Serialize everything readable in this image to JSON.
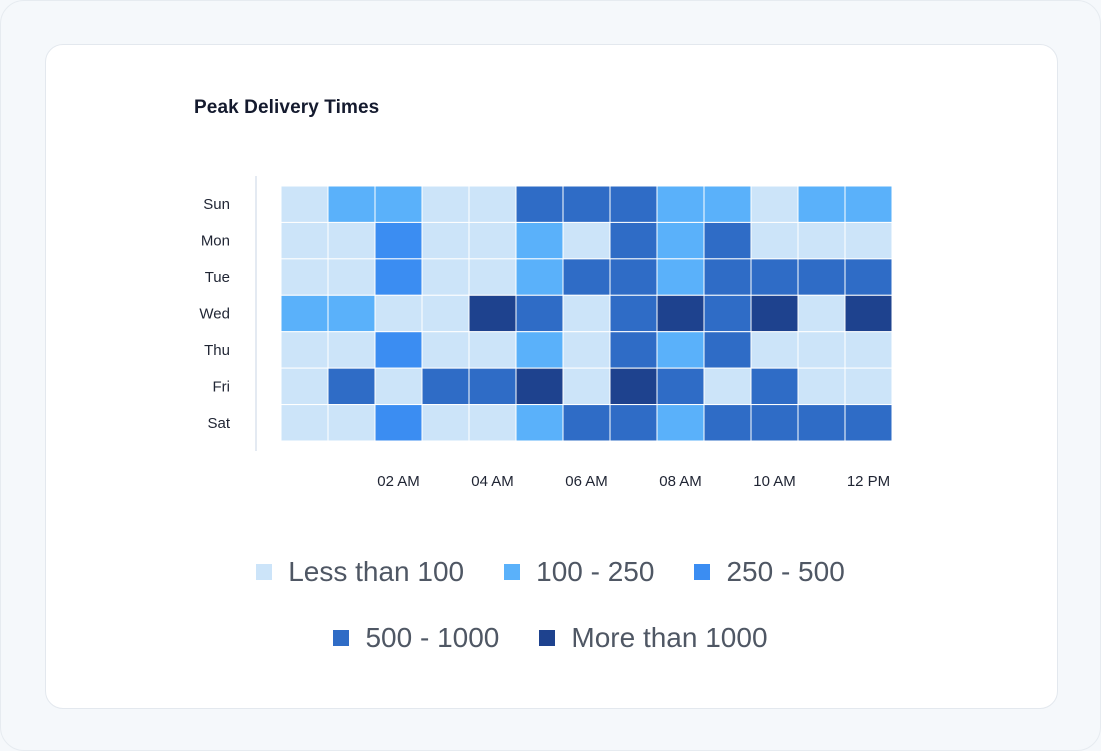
{
  "chart_data": {
    "type": "heatmap",
    "title": "Peak Delivery Times",
    "rows": [
      "Sun",
      "Mon",
      "Tue",
      "Wed",
      "Thu",
      "Fri",
      "Sat"
    ],
    "x_tick_labels": [
      "02 AM",
      "04 AM",
      "06 AM",
      "08 AM",
      "10 AM",
      "12 PM"
    ],
    "num_columns": 13,
    "legend": [
      {
        "label": "Less than 100",
        "color": "#cce4f9"
      },
      {
        "label": "100 - 250",
        "color": "#5ab1fa"
      },
      {
        "label": "250 - 500",
        "color": "#3b8df2"
      },
      {
        "label": "500 - 1000",
        "color": "#2f6cc6"
      },
      {
        "label": "More than 1000",
        "color": "#1e428e"
      }
    ],
    "bins": [
      [
        0,
        1,
        1,
        0,
        0,
        3,
        3,
        3,
        1,
        1,
        0,
        1,
        1
      ],
      [
        0,
        0,
        2,
        0,
        0,
        1,
        0,
        3,
        1,
        3,
        0,
        0,
        0
      ],
      [
        0,
        0,
        2,
        0,
        0,
        1,
        3,
        3,
        1,
        3,
        3,
        3,
        3
      ],
      [
        1,
        1,
        0,
        0,
        4,
        3,
        0,
        3,
        4,
        3,
        4,
        0,
        4
      ],
      [
        0,
        0,
        2,
        0,
        0,
        1,
        0,
        3,
        1,
        3,
        0,
        0,
        0
      ],
      [
        0,
        3,
        0,
        3,
        3,
        4,
        0,
        4,
        3,
        0,
        3,
        0,
        0
      ],
      [
        0,
        0,
        2,
        0,
        0,
        1,
        3,
        3,
        1,
        3,
        3,
        3,
        3
      ]
    ],
    "grid": false,
    "legend_position": "bottom"
  }
}
